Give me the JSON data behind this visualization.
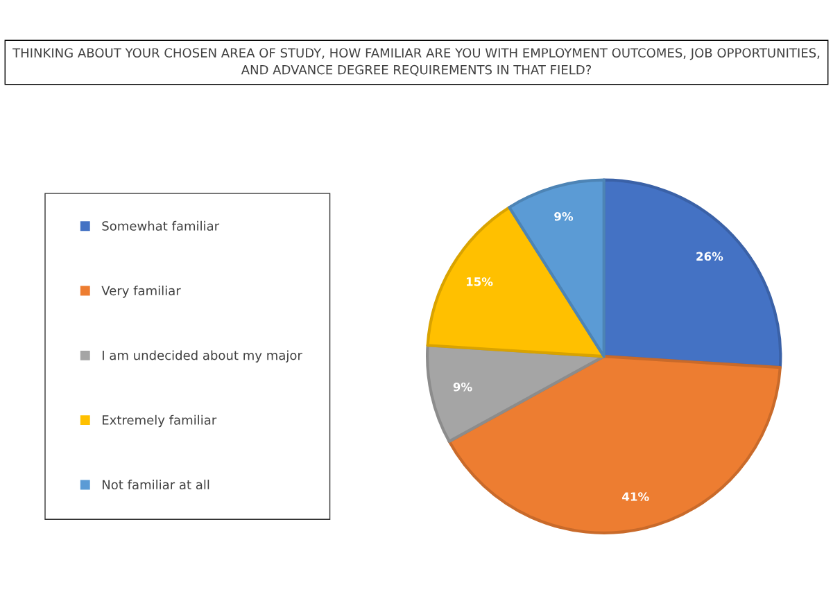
{
  "chart_data": {
    "type": "pie",
    "title": "THINKING ABOUT YOUR CHOSEN AREA OF STUDY, HOW FAMILIAR ARE YOU WITH EMPLOYMENT OUTCOMES, JOB OPPORTUNITIES, AND ADVANCE DEGREE REQUIREMENTS IN THAT FIELD?",
    "categories": [
      "Somewhat familiar",
      "Very familiar",
      "I am undecided about my major",
      "Extremely familiar",
      "Not familiar at all"
    ],
    "values": [
      26,
      41,
      9,
      15,
      9
    ],
    "colors": [
      "#4472c4",
      "#ed7d31",
      "#a5a5a5",
      "#ffc000",
      "#5b9bd5"
    ],
    "value_labels": [
      "26%",
      "41%",
      "9%",
      "15%",
      "9%"
    ],
    "legend": "left"
  }
}
